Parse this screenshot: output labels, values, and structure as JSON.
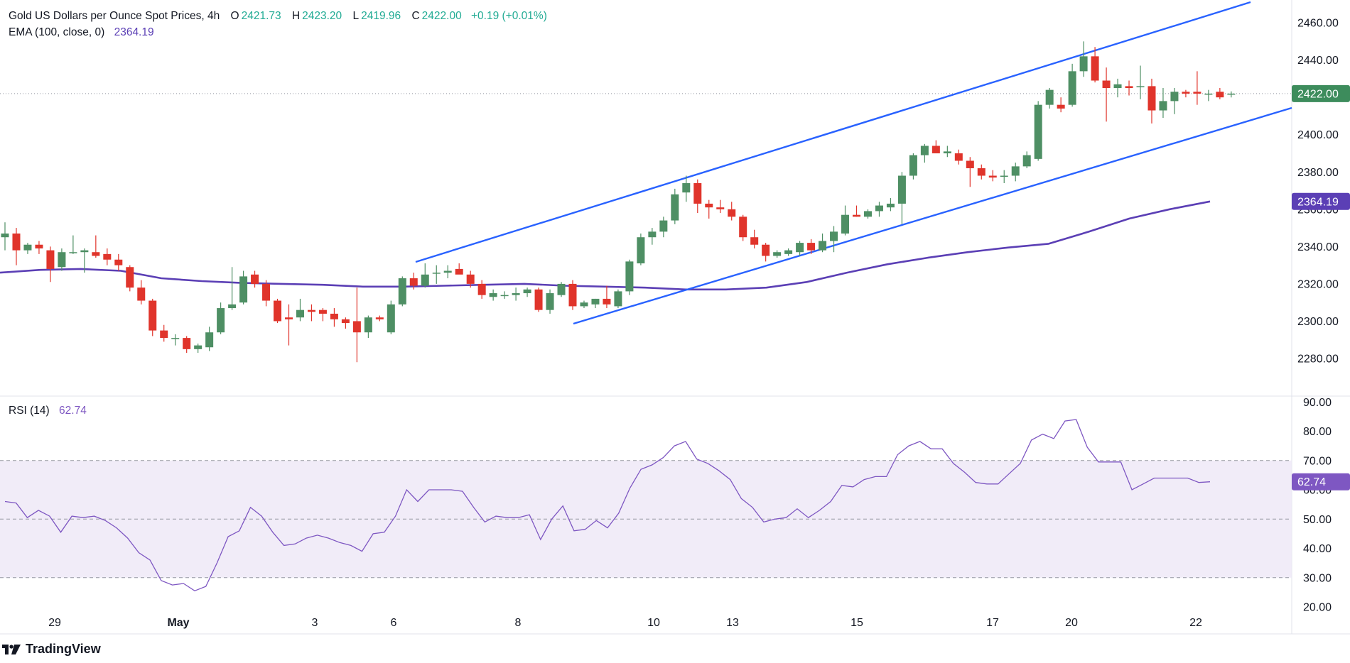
{
  "header": {
    "title": "Gold US Dollars per Ounce Spot Prices, 4h",
    "open_label": "O",
    "open": "2421.73",
    "high_label": "H",
    "high": "2423.20",
    "low_label": "L",
    "low": "2419.96",
    "close_label": "C",
    "close": "2422.00",
    "change": "+0.19 (+0.01%)"
  },
  "ema_legend": {
    "label": "EMA (100, close, 0)",
    "value": "2364.19"
  },
  "rsi_legend": {
    "label": "RSI (14)",
    "value": "62.74"
  },
  "branding": {
    "name": "TradingView"
  },
  "colors": {
    "up": "#22ab94",
    "up_fill": "#4e8f64",
    "down": "#e0342b",
    "ema": "#5b3fb5",
    "rsi": "#7e57c2",
    "trendline": "#2962ff",
    "rsi_band": "#ede7f6",
    "grid": "#f0f3fa"
  },
  "chart_data": [
    {
      "type": "candlestick",
      "title": "Gold US Dollars per Ounce Spot Prices, 4h",
      "y_ticks": [
        2280.0,
        2300.0,
        2320.0,
        2340.0,
        2360.0,
        2380.0,
        2400.0,
        2420.0,
        2440.0,
        2460.0
      ],
      "ylim": [
        2266,
        2474
      ],
      "x_ticks": [
        "29",
        "May",
        "3",
        "6",
        "8",
        "10",
        "13",
        "15",
        "17",
        "20",
        "22"
      ],
      "last_price_label": "2422.00",
      "ema_label": "2364.19",
      "candles": [
        {
          "o": 2345,
          "h": 2353,
          "l": 2338,
          "c": 2347
        },
        {
          "o": 2347,
          "h": 2350,
          "l": 2330,
          "c": 2338
        },
        {
          "o": 2338,
          "h": 2342,
          "l": 2336,
          "c": 2341
        },
        {
          "o": 2341,
          "h": 2343,
          "l": 2336,
          "c": 2339
        },
        {
          "o": 2338,
          "h": 2340,
          "l": 2321,
          "c": 2328
        },
        {
          "o": 2329,
          "h": 2339,
          "l": 2327,
          "c": 2337
        },
        {
          "o": 2337,
          "h": 2346,
          "l": 2336,
          "c": 2337
        },
        {
          "o": 2337,
          "h": 2339,
          "l": 2326,
          "c": 2338
        },
        {
          "o": 2337,
          "h": 2346,
          "l": 2334,
          "c": 2335
        },
        {
          "o": 2336,
          "h": 2339,
          "l": 2330,
          "c": 2333
        },
        {
          "o": 2333,
          "h": 2336,
          "l": 2327,
          "c": 2330
        },
        {
          "o": 2329,
          "h": 2330,
          "l": 2316,
          "c": 2318
        },
        {
          "o": 2318,
          "h": 2322,
          "l": 2309,
          "c": 2311
        },
        {
          "o": 2311,
          "h": 2312,
          "l": 2292,
          "c": 2295
        },
        {
          "o": 2295,
          "h": 2298,
          "l": 2289,
          "c": 2291
        },
        {
          "o": 2291,
          "h": 2293,
          "l": 2287,
          "c": 2291
        },
        {
          "o": 2291,
          "h": 2292,
          "l": 2283,
          "c": 2285
        },
        {
          "o": 2285,
          "h": 2288,
          "l": 2283,
          "c": 2287
        },
        {
          "o": 2286,
          "h": 2297,
          "l": 2284,
          "c": 2294
        },
        {
          "o": 2294,
          "h": 2310,
          "l": 2293,
          "c": 2307
        },
        {
          "o": 2307,
          "h": 2329,
          "l": 2306,
          "c": 2309
        },
        {
          "o": 2310,
          "h": 2327,
          "l": 2309,
          "c": 2324
        },
        {
          "o": 2325,
          "h": 2327,
          "l": 2318,
          "c": 2320
        },
        {
          "o": 2320,
          "h": 2322,
          "l": 2308,
          "c": 2311
        },
        {
          "o": 2311,
          "h": 2312,
          "l": 2299,
          "c": 2300
        },
        {
          "o": 2302,
          "h": 2309,
          "l": 2287,
          "c": 2301
        },
        {
          "o": 2302,
          "h": 2312,
          "l": 2300,
          "c": 2306
        },
        {
          "o": 2306,
          "h": 2309,
          "l": 2300,
          "c": 2305
        },
        {
          "o": 2306,
          "h": 2307,
          "l": 2300,
          "c": 2304
        },
        {
          "o": 2304,
          "h": 2307,
          "l": 2297,
          "c": 2301
        },
        {
          "o": 2301,
          "h": 2302,
          "l": 2296,
          "c": 2299
        },
        {
          "o": 2300,
          "h": 2318,
          "l": 2278,
          "c": 2294
        },
        {
          "o": 2294,
          "h": 2303,
          "l": 2291,
          "c": 2302
        },
        {
          "o": 2302,
          "h": 2303,
          "l": 2300,
          "c": 2301
        },
        {
          "o": 2294,
          "h": 2311,
          "l": 2293,
          "c": 2309
        },
        {
          "o": 2309,
          "h": 2324,
          "l": 2308,
          "c": 2323
        },
        {
          "o": 2323,
          "h": 2326,
          "l": 2317,
          "c": 2319
        },
        {
          "o": 2319,
          "h": 2331,
          "l": 2318,
          "c": 2325
        },
        {
          "o": 2326,
          "h": 2330,
          "l": 2320,
          "c": 2326
        },
        {
          "o": 2326,
          "h": 2330,
          "l": 2323,
          "c": 2327
        },
        {
          "o": 2328,
          "h": 2331,
          "l": 2326,
          "c": 2325
        },
        {
          "o": 2325,
          "h": 2327,
          "l": 2318,
          "c": 2320
        },
        {
          "o": 2320,
          "h": 2322,
          "l": 2312,
          "c": 2314
        },
        {
          "o": 2313,
          "h": 2317,
          "l": 2311,
          "c": 2315
        },
        {
          "o": 2314,
          "h": 2316,
          "l": 2312,
          "c": 2314
        },
        {
          "o": 2314,
          "h": 2318,
          "l": 2311,
          "c": 2315
        },
        {
          "o": 2315,
          "h": 2318,
          "l": 2313,
          "c": 2317
        },
        {
          "o": 2317,
          "h": 2318,
          "l": 2305,
          "c": 2306
        },
        {
          "o": 2306,
          "h": 2317,
          "l": 2304,
          "c": 2315
        },
        {
          "o": 2314,
          "h": 2321,
          "l": 2313,
          "c": 2320
        },
        {
          "o": 2320,
          "h": 2322,
          "l": 2306,
          "c": 2308
        },
        {
          "o": 2308,
          "h": 2311,
          "l": 2307,
          "c": 2310
        },
        {
          "o": 2309,
          "h": 2312,
          "l": 2307,
          "c": 2312
        },
        {
          "o": 2312,
          "h": 2319,
          "l": 2307,
          "c": 2309
        },
        {
          "o": 2308,
          "h": 2317,
          "l": 2307,
          "c": 2316
        },
        {
          "o": 2316,
          "h": 2333,
          "l": 2314,
          "c": 2332
        },
        {
          "o": 2331,
          "h": 2347,
          "l": 2330,
          "c": 2345
        },
        {
          "o": 2345,
          "h": 2350,
          "l": 2341,
          "c": 2348
        },
        {
          "o": 2348,
          "h": 2356,
          "l": 2345,
          "c": 2354
        },
        {
          "o": 2354,
          "h": 2371,
          "l": 2352,
          "c": 2368
        },
        {
          "o": 2369,
          "h": 2378,
          "l": 2364,
          "c": 2374
        },
        {
          "o": 2374,
          "h": 2376,
          "l": 2358,
          "c": 2363
        },
        {
          "o": 2363,
          "h": 2365,
          "l": 2355,
          "c": 2361
        },
        {
          "o": 2361,
          "h": 2365,
          "l": 2358,
          "c": 2360
        },
        {
          "o": 2360,
          "h": 2364,
          "l": 2354,
          "c": 2356
        },
        {
          "o": 2356,
          "h": 2357,
          "l": 2343,
          "c": 2345
        },
        {
          "o": 2345,
          "h": 2349,
          "l": 2339,
          "c": 2341
        },
        {
          "o": 2341,
          "h": 2342,
          "l": 2332,
          "c": 2335
        },
        {
          "o": 2335,
          "h": 2338,
          "l": 2334,
          "c": 2337
        },
        {
          "o": 2336,
          "h": 2339,
          "l": 2335,
          "c": 2338
        },
        {
          "o": 2337,
          "h": 2343,
          "l": 2335,
          "c": 2342
        },
        {
          "o": 2342,
          "h": 2344,
          "l": 2336,
          "c": 2338
        },
        {
          "o": 2338,
          "h": 2347,
          "l": 2337,
          "c": 2343
        },
        {
          "o": 2343,
          "h": 2351,
          "l": 2337,
          "c": 2348
        },
        {
          "o": 2347,
          "h": 2362,
          "l": 2346,
          "c": 2357
        },
        {
          "o": 2357,
          "h": 2362,
          "l": 2356,
          "c": 2356
        },
        {
          "o": 2356,
          "h": 2360,
          "l": 2355,
          "c": 2359
        },
        {
          "o": 2359,
          "h": 2364,
          "l": 2356,
          "c": 2362
        },
        {
          "o": 2361,
          "h": 2366,
          "l": 2359,
          "c": 2363
        },
        {
          "o": 2363,
          "h": 2380,
          "l": 2352,
          "c": 2378
        },
        {
          "o": 2378,
          "h": 2390,
          "l": 2376,
          "c": 2389
        },
        {
          "o": 2389,
          "h": 2395,
          "l": 2385,
          "c": 2394
        },
        {
          "o": 2394,
          "h": 2397,
          "l": 2390,
          "c": 2390
        },
        {
          "o": 2390,
          "h": 2394,
          "l": 2388,
          "c": 2391
        },
        {
          "o": 2390,
          "h": 2392,
          "l": 2384,
          "c": 2386
        },
        {
          "o": 2386,
          "h": 2388,
          "l": 2372,
          "c": 2382
        },
        {
          "o": 2382,
          "h": 2384,
          "l": 2376,
          "c": 2378
        },
        {
          "o": 2378,
          "h": 2381,
          "l": 2375,
          "c": 2377
        },
        {
          "o": 2378,
          "h": 2381,
          "l": 2374,
          "c": 2378
        },
        {
          "o": 2378,
          "h": 2385,
          "l": 2375,
          "c": 2383
        },
        {
          "o": 2383,
          "h": 2391,
          "l": 2382,
          "c": 2389
        },
        {
          "o": 2387,
          "h": 2418,
          "l": 2386,
          "c": 2416
        },
        {
          "o": 2416,
          "h": 2425,
          "l": 2414,
          "c": 2424
        },
        {
          "o": 2416,
          "h": 2420,
          "l": 2412,
          "c": 2414
        },
        {
          "o": 2416,
          "h": 2438,
          "l": 2415,
          "c": 2434
        },
        {
          "o": 2434,
          "h": 2450,
          "l": 2431,
          "c": 2442
        },
        {
          "o": 2442,
          "h": 2447,
          "l": 2428,
          "c": 2429
        },
        {
          "o": 2429,
          "h": 2436,
          "l": 2407,
          "c": 2425
        },
        {
          "o": 2425,
          "h": 2430,
          "l": 2420,
          "c": 2427
        },
        {
          "o": 2426,
          "h": 2429,
          "l": 2421,
          "c": 2425
        },
        {
          "o": 2426,
          "h": 2437,
          "l": 2419,
          "c": 2426
        },
        {
          "o": 2426,
          "h": 2430,
          "l": 2406,
          "c": 2413
        },
        {
          "o": 2413,
          "h": 2425,
          "l": 2409,
          "c": 2418
        },
        {
          "o": 2418,
          "h": 2425,
          "l": 2411,
          "c": 2423
        },
        {
          "o": 2423,
          "h": 2424,
          "l": 2420,
          "c": 2422
        },
        {
          "o": 2423,
          "h": 2434,
          "l": 2416,
          "c": 2422
        },
        {
          "o": 2422,
          "h": 2424,
          "l": 2418,
          "c": 2422
        },
        {
          "o": 2423,
          "h": 2425,
          "l": 2419,
          "c": 2420
        },
        {
          "o": 2421.73,
          "h": 2423.2,
          "l": 2419.96,
          "c": 2422
        }
      ],
      "ema": [
        2326,
        2327.5,
        2328,
        2327,
        2323,
        2321.5,
        2320.5,
        2320,
        2319.5,
        2318.5,
        2318.5,
        2319,
        2319.5,
        2320,
        2319,
        2318.5,
        2318,
        2317,
        2317,
        2318,
        2321,
        2326,
        2330.5,
        2334,
        2337,
        2339.5,
        2341.5,
        2348,
        2355,
        2360,
        2364.19
      ]
    },
    {
      "type": "line",
      "title": "RSI (14)",
      "y_ticks": [
        20.0,
        30.0,
        40.0,
        50.0,
        60.0,
        70.0,
        80.0,
        90.0
      ],
      "ylim": [
        19,
        91
      ],
      "band": [
        30,
        70
      ],
      "mid": 50,
      "last_value_label": "62.74",
      "values": [
        56,
        55.5,
        50.5,
        53,
        51,
        45.5,
        51,
        50.5,
        51,
        49.5,
        47,
        43.5,
        38.5,
        36,
        29,
        27.5,
        28,
        25.5,
        27,
        35,
        44,
        46,
        54,
        51,
        45.5,
        41,
        41.5,
        43.5,
        44.5,
        43.5,
        42,
        41,
        39,
        45,
        45.5,
        51,
        60,
        56,
        60,
        60,
        60,
        59.5,
        54,
        49,
        51,
        50.5,
        50.5,
        51.5,
        43,
        50,
        54.5,
        46,
        46.5,
        49.5,
        47,
        52,
        60.5,
        67,
        68.5,
        71,
        75,
        76.5,
        70.5,
        69,
        66.5,
        63.5,
        57,
        54,
        49,
        50,
        50.5,
        53.5,
        50.5,
        53,
        56,
        61.5,
        61,
        63.5,
        64.5,
        64.5,
        72,
        75,
        76.5,
        74,
        74,
        69,
        66,
        62.5,
        62,
        62,
        65.5,
        69,
        77,
        79,
        77.5,
        83.5,
        84,
        74.5,
        69.5,
        69.5,
        69.5,
        60,
        62,
        64,
        64,
        64,
        64,
        62.5,
        62.74
      ]
    }
  ]
}
